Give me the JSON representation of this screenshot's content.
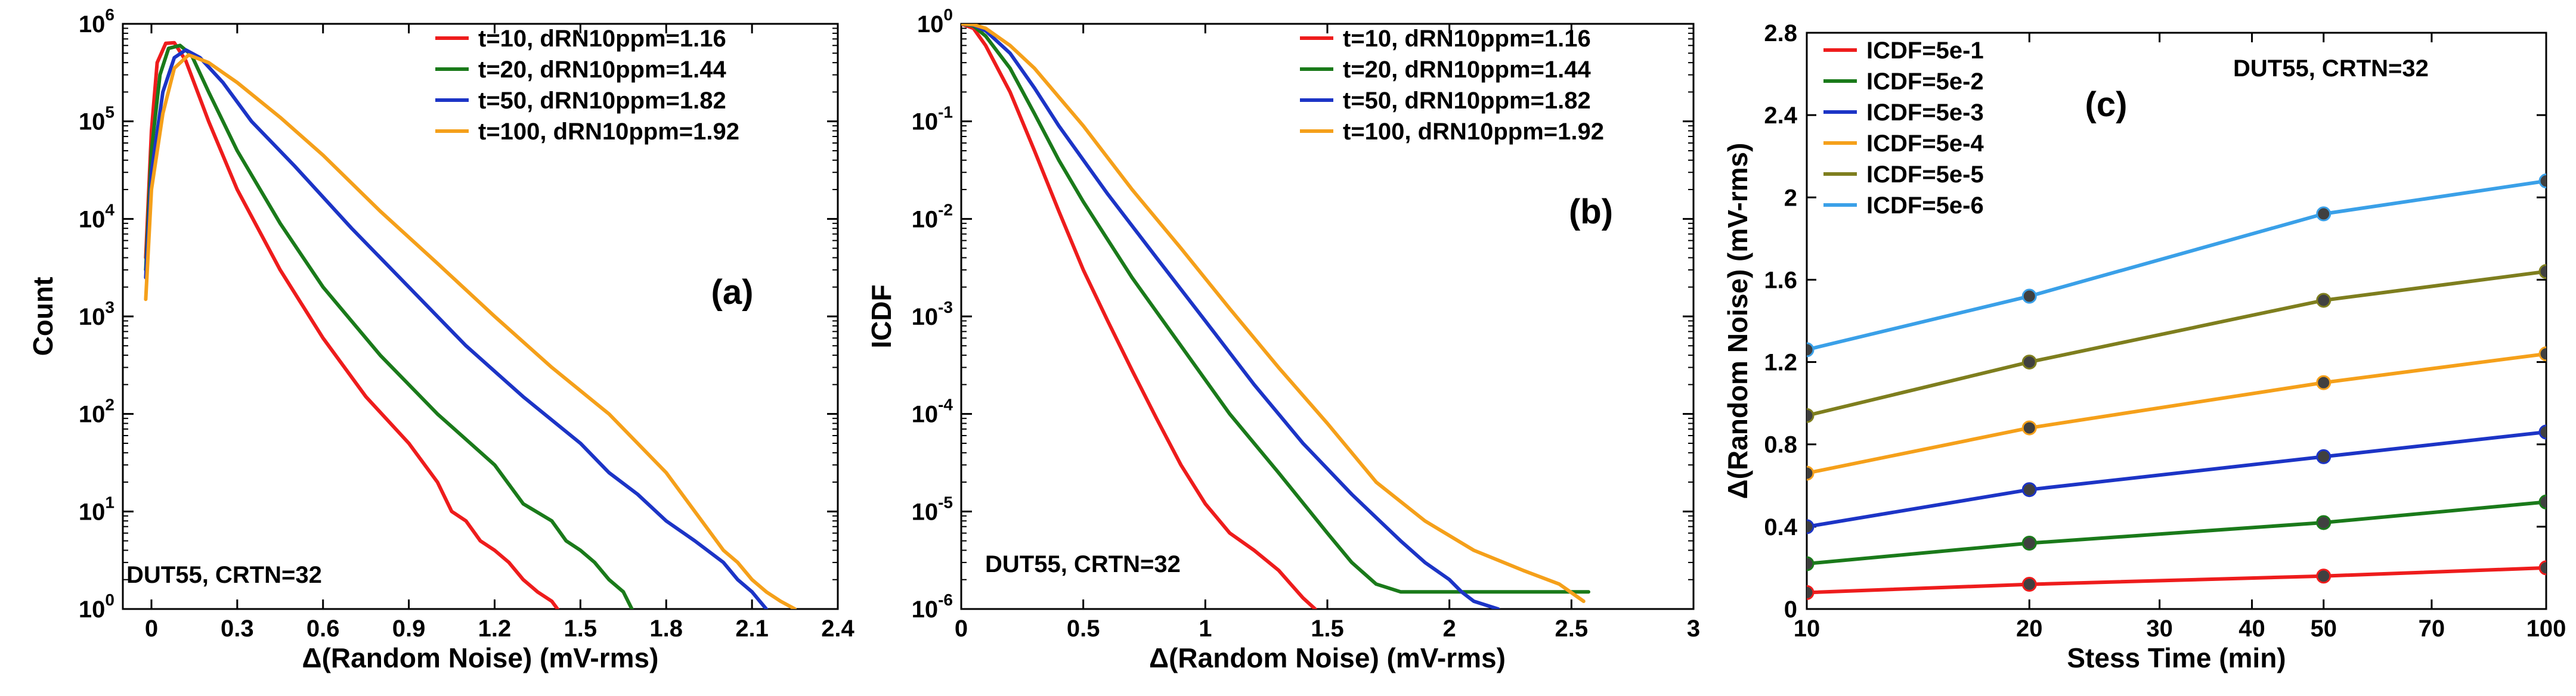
{
  "colors": {
    "red": "#ee1c1c",
    "green": "#1a7a1a",
    "blue": "#1c34c6",
    "orange": "#f5a01a",
    "olive": "#7e7e1e",
    "lightblue": "#3aa0e8",
    "marker": "#404040"
  },
  "chart_data": [
    {
      "type": "line",
      "panel_label": "(a)",
      "annotation": "DUT55, CRTN=32",
      "xlabel": "Δ(Random Noise) (mV-rms)",
      "ylabel": "Count",
      "xlim": [
        -0.1,
        2.4
      ],
      "xscale": "linear",
      "yscale": "log",
      "ylim_exp": [
        0,
        6
      ],
      "xticks": [
        0,
        0.3,
        0.6,
        0.9,
        1.2,
        1.5,
        1.8,
        2.1,
        2.4
      ],
      "xtick_labels": [
        "0",
        "0.3",
        "0.6",
        "0.9",
        "1.2",
        "1.5",
        "1.8",
        "2.1",
        "2.4"
      ],
      "ytick_labels": [
        {
          "base": "10",
          "exp": "0"
        },
        {
          "base": "10",
          "exp": "1"
        },
        {
          "base": "10",
          "exp": "2"
        },
        {
          "base": "10",
          "exp": "3"
        },
        {
          "base": "10",
          "exp": "4"
        },
        {
          "base": "10",
          "exp": "5"
        },
        {
          "base": "10",
          "exp": "6"
        }
      ],
      "legend": [
        "t=10, dRN10ppm=1.16",
        "t=20, dRN10ppm=1.44",
        "t=50, dRN10ppm=1.82",
        "t=100, dRN10ppm=1.92"
      ],
      "legend_position": "top-right",
      "series": [
        {
          "name": "t=10, dRN10ppm=1.16",
          "color": "red",
          "x": [
            -0.02,
            0,
            0.02,
            0.05,
            0.08,
            0.12,
            0.2,
            0.3,
            0.45,
            0.6,
            0.75,
            0.9,
            1.0,
            1.05,
            1.1,
            1.15,
            1.2,
            1.25,
            1.3,
            1.35,
            1.4,
            1.42
          ],
          "y": [
            4000,
            80000,
            400000,
            630000,
            640000,
            420000,
            100000,
            20000,
            3000,
            600,
            150,
            50,
            20,
            10,
            8,
            5,
            4,
            3,
            2,
            1.5,
            1.2,
            1
          ]
        },
        {
          "name": "t=20, dRN10ppm=1.44",
          "color": "green",
          "x": [
            -0.02,
            0,
            0.03,
            0.06,
            0.1,
            0.14,
            0.2,
            0.3,
            0.45,
            0.6,
            0.8,
            1.0,
            1.2,
            1.3,
            1.4,
            1.45,
            1.5,
            1.55,
            1.6,
            1.65,
            1.68
          ],
          "y": [
            3000,
            50000,
            300000,
            560000,
            600000,
            480000,
            200000,
            50000,
            9000,
            2000,
            400,
            100,
            30,
            12,
            8,
            5,
            4,
            3,
            2,
            1.5,
            1
          ]
        },
        {
          "name": "t=50, dRN10ppm=1.82",
          "color": "blue",
          "x": [
            -0.02,
            0,
            0.04,
            0.08,
            0.12,
            0.17,
            0.25,
            0.35,
            0.5,
            0.7,
            0.9,
            1.1,
            1.3,
            1.5,
            1.6,
            1.7,
            1.8,
            1.9,
            2.0,
            2.05,
            2.1,
            2.15
          ],
          "y": [
            2500,
            30000,
            200000,
            450000,
            540000,
            450000,
            250000,
            100000,
            35000,
            8000,
            2000,
            500,
            150,
            50,
            25,
            15,
            8,
            5,
            3,
            2,
            1.5,
            1
          ]
        },
        {
          "name": "t=100, dRN10ppm=1.92",
          "color": "orange",
          "x": [
            -0.02,
            0,
            0.04,
            0.08,
            0.13,
            0.2,
            0.3,
            0.45,
            0.6,
            0.8,
            1.0,
            1.2,
            1.4,
            1.6,
            1.8,
            1.9,
            2.0,
            2.05,
            2.1,
            2.15,
            2.2,
            2.25
          ],
          "y": [
            1500,
            20000,
            120000,
            350000,
            480000,
            400000,
            250000,
            110000,
            45000,
            12000,
            3500,
            1000,
            300,
            100,
            25,
            10,
            4,
            3,
            2,
            1.5,
            1.2,
            1
          ]
        }
      ]
    },
    {
      "type": "line",
      "panel_label": "(b)",
      "annotation": "DUT55, CRTN=32",
      "xlabel": "Δ(Random Noise) (mV-rms)",
      "ylabel": "ICDF",
      "xlim": [
        0,
        3
      ],
      "xscale": "linear",
      "yscale": "log",
      "ylim_exp": [
        -6,
        0
      ],
      "xticks": [
        0,
        0.5,
        1,
        1.5,
        2,
        2.5,
        3
      ],
      "xtick_labels": [
        "0",
        "0.5",
        "1",
        "1.5",
        "2",
        "2.5",
        "3"
      ],
      "ytick_labels": [
        {
          "base": "10",
          "exp": "-6"
        },
        {
          "base": "10",
          "exp": "-5"
        },
        {
          "base": "10",
          "exp": "-4"
        },
        {
          "base": "10",
          "exp": "-3"
        },
        {
          "base": "10",
          "exp": "-2"
        },
        {
          "base": "10",
          "exp": "-1"
        },
        {
          "base": "10",
          "exp": "0"
        }
      ],
      "legend": [
        "t=10, dRN10ppm=1.16",
        "t=20, dRN10ppm=1.44",
        "t=50, dRN10ppm=1.82",
        "t=100, dRN10ppm=1.92"
      ],
      "legend_position": "top-right",
      "series": [
        {
          "name": "t=10, dRN10ppm=1.16",
          "color": "red",
          "x": [
            0,
            0.05,
            0.1,
            0.2,
            0.3,
            0.4,
            0.5,
            0.6,
            0.7,
            0.8,
            0.9,
            1.0,
            1.1,
            1.2,
            1.3,
            1.35,
            1.4,
            1.45
          ],
          "y": [
            1,
            0.9,
            0.6,
            0.2,
            0.05,
            0.012,
            0.003,
            0.0009,
            0.00028,
            9e-05,
            3e-05,
            1.2e-05,
            6e-06,
            4e-06,
            2.5e-06,
            1.8e-06,
            1.3e-06,
            1e-06
          ]
        },
        {
          "name": "t=20, dRN10ppm=1.44",
          "color": "green",
          "x": [
            0,
            0.05,
            0.1,
            0.2,
            0.3,
            0.4,
            0.5,
            0.7,
            0.9,
            1.1,
            1.3,
            1.5,
            1.6,
            1.7,
            1.8,
            2.0,
            2.3,
            2.57
          ],
          "y": [
            1,
            0.95,
            0.75,
            0.35,
            0.12,
            0.04,
            0.015,
            0.0025,
            0.0005,
            0.0001,
            2.5e-05,
            6e-06,
            3e-06,
            1.8e-06,
            1.5e-06,
            1.5e-06,
            1.5e-06,
            1.5e-06
          ]
        },
        {
          "name": "t=50, dRN10ppm=1.82",
          "color": "blue",
          "x": [
            0,
            0.05,
            0.1,
            0.2,
            0.3,
            0.4,
            0.6,
            0.8,
            1.0,
            1.2,
            1.4,
            1.6,
            1.8,
            1.9,
            2.0,
            2.05,
            2.1,
            2.2
          ],
          "y": [
            1,
            0.97,
            0.85,
            0.5,
            0.22,
            0.09,
            0.018,
            0.004,
            0.0009,
            0.0002,
            5e-05,
            1.5e-05,
            5e-06,
            3e-06,
            2e-06,
            1.5e-06,
            1.2e-06,
            1e-06
          ]
        },
        {
          "name": "t=100, dRN10ppm=1.92",
          "color": "orange",
          "x": [
            0,
            0.05,
            0.1,
            0.2,
            0.3,
            0.5,
            0.7,
            0.9,
            1.1,
            1.3,
            1.5,
            1.7,
            1.9,
            2.1,
            2.3,
            2.45,
            2.55
          ],
          "y": [
            1,
            0.98,
            0.9,
            0.6,
            0.35,
            0.09,
            0.02,
            0.005,
            0.0012,
            0.0003,
            8e-05,
            2e-05,
            8e-06,
            4e-06,
            2.5e-06,
            1.8e-06,
            1.2e-06
          ]
        }
      ]
    },
    {
      "type": "line",
      "panel_label": "(c)",
      "annotation": "DUT55, CRTN=32",
      "xlabel": "Stess Time (min)",
      "ylabel": "Δ(Random Noise) (mV-rms)",
      "xscale": "log",
      "xlim": [
        10,
        100
      ],
      "ylim": [
        0,
        2.8
      ],
      "xticks": [
        10,
        20,
        30,
        40,
        50,
        70,
        100
      ],
      "xtick_labels": [
        "10",
        "20",
        "30",
        "40",
        "50",
        "70",
        "100"
      ],
      "yticks": [
        0,
        0.4,
        0.8,
        1.2,
        1.6,
        2,
        2.4,
        2.8
      ],
      "ytick_labels": [
        "0",
        "0.4",
        "0.8",
        "1.2",
        "1.6",
        "2",
        "2.4",
        "2.8"
      ],
      "legend": [
        "ICDF=5e-1",
        "ICDF=5e-2",
        "ICDF=5e-3",
        "ICDF=5e-4",
        "ICDF=5e-5",
        "ICDF=5e-6"
      ],
      "legend_position": "top-left",
      "x": [
        10,
        20,
        50,
        100
      ],
      "series": [
        {
          "name": "ICDF=5e-1",
          "color": "red",
          "values": [
            0.08,
            0.12,
            0.16,
            0.2
          ]
        },
        {
          "name": "ICDF=5e-2",
          "color": "green",
          "values": [
            0.22,
            0.32,
            0.42,
            0.52
          ]
        },
        {
          "name": "ICDF=5e-3",
          "color": "blue",
          "values": [
            0.4,
            0.58,
            0.74,
            0.86
          ]
        },
        {
          "name": "ICDF=5e-4",
          "color": "orange",
          "values": [
            0.66,
            0.88,
            1.1,
            1.24
          ]
        },
        {
          "name": "ICDF=5e-5",
          "color": "olive",
          "values": [
            0.94,
            1.2,
            1.5,
            1.64
          ]
        },
        {
          "name": "ICDF=5e-6",
          "color": "lightblue",
          "values": [
            1.26,
            1.52,
            1.92,
            2.08
          ]
        }
      ]
    }
  ]
}
